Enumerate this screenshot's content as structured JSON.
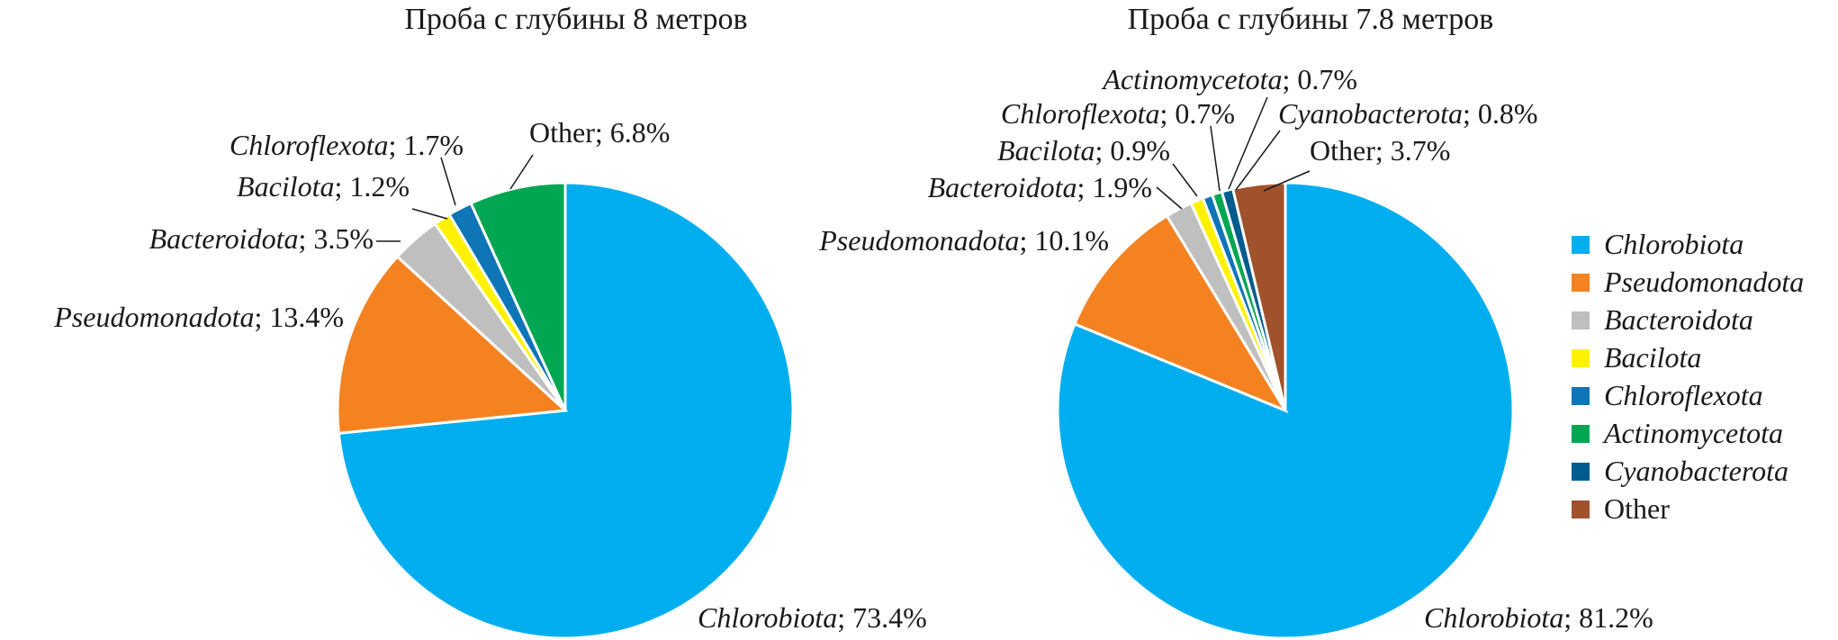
{
  "chart_data": [
    {
      "type": "pie",
      "title": "Проба с глубины 8 метров",
      "slices": [
        {
          "name": "Chlorobiota",
          "value": 73.4,
          "label_value": "73.4%",
          "color": "#00AEEF"
        },
        {
          "name": "Pseudomonadota",
          "value": 13.4,
          "label_value": "13.4%",
          "color": "#F58220"
        },
        {
          "name": "Bacteroidota",
          "value": 3.5,
          "label_value": "3.5%",
          "color": "#BFBFBF"
        },
        {
          "name": "Bacilota",
          "value": 1.2,
          "label_value": "1.2%",
          "color": "#FFF200"
        },
        {
          "name": "Chloroflexota",
          "value": 1.7,
          "label_value": "1.7%",
          "color": "#0E75B6"
        },
        {
          "name": "Other",
          "value": 6.8,
          "label_value": "6.8%",
          "color": "#00A651"
        }
      ]
    },
    {
      "type": "pie",
      "title": "Проба с глубины 7.8 метров",
      "slices": [
        {
          "name": "Chlorobiota",
          "value": 81.2,
          "label_value": "81.2%",
          "color": "#00AEEF"
        },
        {
          "name": "Pseudomonadota",
          "value": 10.1,
          "label_value": "10.1%",
          "color": "#F58220"
        },
        {
          "name": "Bacteroidota",
          "value": 1.9,
          "label_value": "1.9%",
          "color": "#BFBFBF"
        },
        {
          "name": "Bacilota",
          "value": 0.9,
          "label_value": "0.9%",
          "color": "#FFF200"
        },
        {
          "name": "Chloroflexota",
          "value": 0.7,
          "label_value": "0.7%",
          "color": "#0E75B6"
        },
        {
          "name": "Actinomycetota",
          "value": 0.7,
          "label_value": "0.7%",
          "color": "#00A651"
        },
        {
          "name": "Cyanobacterota",
          "value": 0.8,
          "label_value": "0.8%",
          "color": "#005B8F"
        },
        {
          "name": "Other",
          "value": 3.7,
          "label_value": "3.7%",
          "color": "#A0522D"
        }
      ]
    }
  ],
  "legend": {
    "placement": "right",
    "items": [
      {
        "name": "Chlorobiota",
        "color": "#00AEEF"
      },
      {
        "name": "Pseudomonadota",
        "color": "#F58220"
      },
      {
        "name": "Bacteroidota",
        "color": "#BFBFBF"
      },
      {
        "name": "Bacilota",
        "color": "#FFF200"
      },
      {
        "name": "Chloroflexota",
        "color": "#0E75B6"
      },
      {
        "name": "Actinomycetota",
        "color": "#00A651"
      },
      {
        "name": "Cyanobacterota",
        "color": "#005B8F"
      },
      {
        "name": "Other",
        "color": "#A0522D"
      }
    ]
  }
}
